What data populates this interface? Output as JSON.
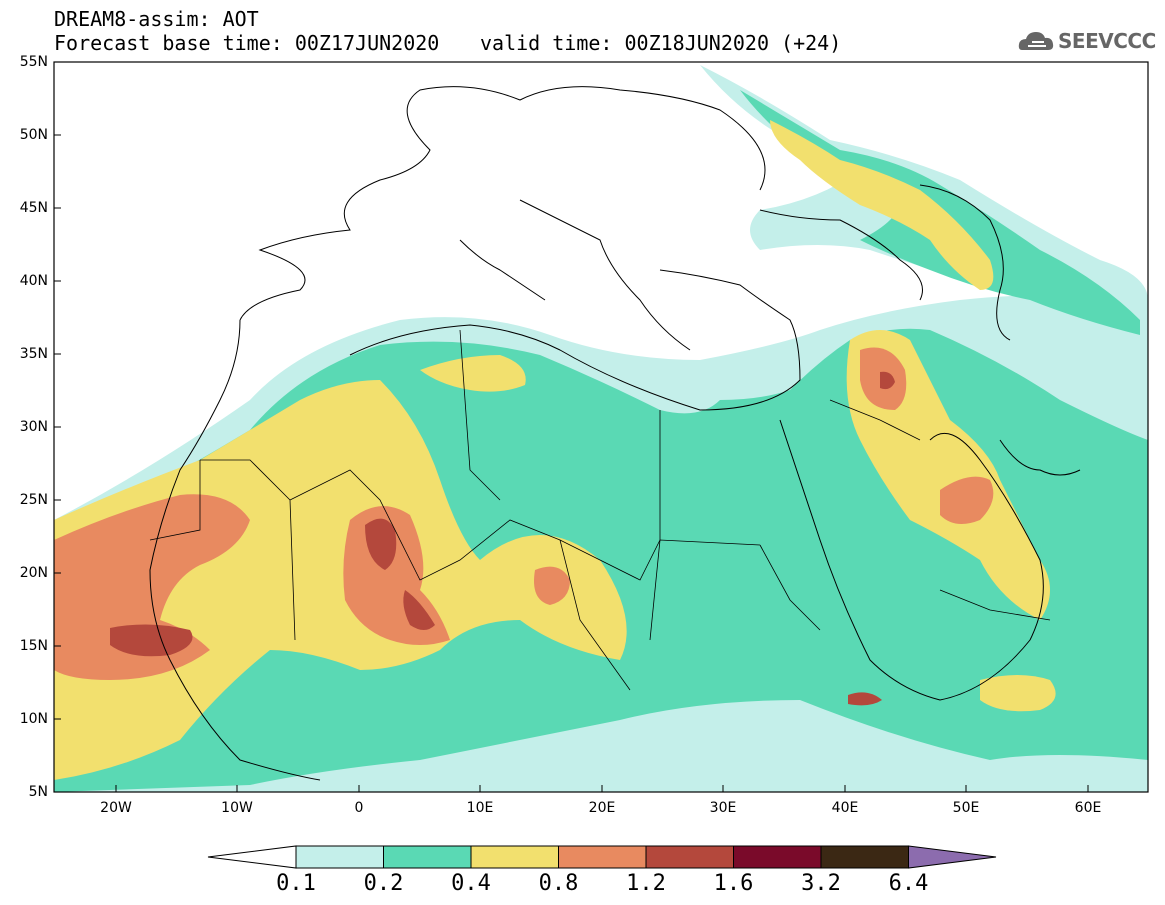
{
  "header": {
    "title": "DREAM8-assim: AOT",
    "base_time": "Forecast base time: 00Z17JUN2020",
    "valid_time": "valid time: 00Z18JUN2020 (+24)",
    "logo_text": "SEEVCCC"
  },
  "axes": {
    "lat_labels": [
      "55N",
      "50N",
      "45N",
      "40N",
      "35N",
      "30N",
      "25N",
      "20N",
      "15N",
      "10N",
      "5N"
    ],
    "lon_labels": [
      "20W",
      "10W",
      "0",
      "10E",
      "20E",
      "30E",
      "40E",
      "50E",
      "60E"
    ]
  },
  "colorbar": {
    "labels": [
      "0.1",
      "0.2",
      "0.4",
      "0.8",
      "1.2",
      "1.6",
      "3.2",
      "6.4"
    ],
    "colors": [
      "#ffffff",
      "#c4efea",
      "#5ad9b4",
      "#f2e06e",
      "#e88a60",
      "#b4483c",
      "#7a0a2a",
      "#3b2814",
      "#8c6cae"
    ]
  },
  "legend_colors": {
    "very_low": "#c4efea",
    "low": "#5ad9b4",
    "moderate": "#f2e06e",
    "high": "#e88a60",
    "very_high": "#b4483c"
  }
}
